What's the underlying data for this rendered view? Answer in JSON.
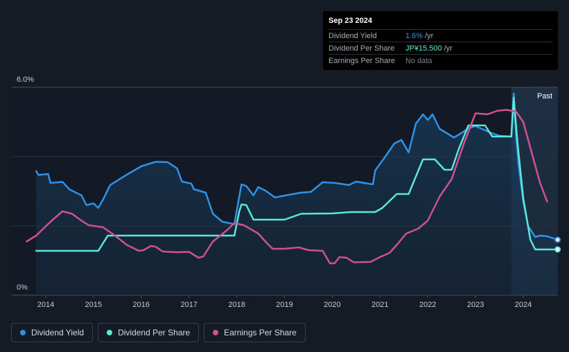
{
  "tooltip": {
    "date": "Sep 23 2024",
    "rows": [
      {
        "label": "Dividend Yield",
        "value": "1.6%",
        "unit": "/yr"
      },
      {
        "label": "Dividend Per Share",
        "value": "JP¥15.500",
        "unit": "/yr"
      },
      {
        "label": "Earnings Per Share",
        "value": "No data",
        "unit": ""
      }
    ]
  },
  "past_label": "Past",
  "legend": [
    {
      "label": "Dividend Yield",
      "color": "#2e93e8"
    },
    {
      "label": "Dividend Per Share",
      "color": "#5ce8d6"
    },
    {
      "label": "Earnings Per Share",
      "color": "#d1508f"
    }
  ],
  "chart_data": {
    "type": "line",
    "title": "",
    "xlabel": "",
    "ylabel": "",
    "ylim": [
      0,
      6.0
    ],
    "y_ticks": [
      "0%",
      "6.0%"
    ],
    "xlim": [
      2013.6,
      2024.72
    ],
    "x_ticks": [
      "2014",
      "2015",
      "2016",
      "2017",
      "2018",
      "2019",
      "2020",
      "2021",
      "2022",
      "2023",
      "2024"
    ],
    "forecast_start": 2023.75,
    "series": [
      {
        "name": "Dividend Yield",
        "color": "#2e93e8",
        "unit": "%",
        "points": [
          [
            2013.8,
            3.58
          ],
          [
            2013.85,
            3.47
          ],
          [
            2014.05,
            3.5
          ],
          [
            2014.1,
            3.24
          ],
          [
            2014.35,
            3.27
          ],
          [
            2014.5,
            3.05
          ],
          [
            2014.75,
            2.88
          ],
          [
            2014.85,
            2.6
          ],
          [
            2015.0,
            2.65
          ],
          [
            2015.1,
            2.52
          ],
          [
            2015.2,
            2.76
          ],
          [
            2015.35,
            3.18
          ],
          [
            2015.7,
            3.48
          ],
          [
            2016.0,
            3.72
          ],
          [
            2016.3,
            3.85
          ],
          [
            2016.55,
            3.84
          ],
          [
            2016.75,
            3.66
          ],
          [
            2016.85,
            3.28
          ],
          [
            2017.05,
            3.22
          ],
          [
            2017.1,
            3.06
          ],
          [
            2017.35,
            2.96
          ],
          [
            2017.5,
            2.35
          ],
          [
            2017.7,
            2.12
          ],
          [
            2017.95,
            2.05
          ],
          [
            2018.0,
            2.45
          ],
          [
            2018.1,
            3.2
          ],
          [
            2018.2,
            3.15
          ],
          [
            2018.35,
            2.88
          ],
          [
            2018.45,
            3.12
          ],
          [
            2018.6,
            3.02
          ],
          [
            2018.8,
            2.82
          ],
          [
            2019.1,
            2.9
          ],
          [
            2019.35,
            2.96
          ],
          [
            2019.55,
            2.98
          ],
          [
            2019.8,
            3.26
          ],
          [
            2020.05,
            3.24
          ],
          [
            2020.35,
            3.18
          ],
          [
            2020.5,
            3.28
          ],
          [
            2020.75,
            3.22
          ],
          [
            2020.85,
            3.2
          ],
          [
            2020.9,
            3.6
          ],
          [
            2021.1,
            3.98
          ],
          [
            2021.3,
            4.38
          ],
          [
            2021.45,
            4.48
          ],
          [
            2021.6,
            4.12
          ],
          [
            2021.75,
            4.95
          ],
          [
            2021.9,
            5.22
          ],
          [
            2022.0,
            5.06
          ],
          [
            2022.1,
            5.22
          ],
          [
            2022.25,
            4.8
          ],
          [
            2022.55,
            4.55
          ],
          [
            2022.75,
            4.72
          ],
          [
            2022.85,
            4.82
          ],
          [
            2023.0,
            4.88
          ],
          [
            2023.3,
            4.7
          ],
          [
            2023.5,
            4.6
          ],
          [
            2023.75,
            4.58
          ],
          [
            2023.8,
            5.82
          ],
          [
            2023.85,
            4.6
          ],
          [
            2023.9,
            3.8
          ],
          [
            2024.0,
            2.7
          ],
          [
            2024.1,
            2.0
          ],
          [
            2024.25,
            1.68
          ],
          [
            2024.35,
            1.72
          ],
          [
            2024.5,
            1.7
          ],
          [
            2024.72,
            1.6
          ]
        ]
      },
      {
        "name": "Dividend Per Share",
        "color": "#5ce8d6",
        "unit": "JPY",
        "points": [
          [
            2013.8,
            1.28
          ],
          [
            2015.1,
            1.28
          ],
          [
            2015.3,
            1.72
          ],
          [
            2017.95,
            1.72
          ],
          [
            2018.05,
            2.4
          ],
          [
            2018.1,
            2.62
          ],
          [
            2018.2,
            2.6
          ],
          [
            2018.35,
            2.18
          ],
          [
            2019.0,
            2.18
          ],
          [
            2019.35,
            2.35
          ],
          [
            2020.0,
            2.36
          ],
          [
            2020.4,
            2.4
          ],
          [
            2020.9,
            2.4
          ],
          [
            2021.05,
            2.52
          ],
          [
            2021.35,
            2.92
          ],
          [
            2021.6,
            2.92
          ],
          [
            2021.9,
            3.92
          ],
          [
            2022.15,
            3.92
          ],
          [
            2022.35,
            3.62
          ],
          [
            2022.5,
            3.62
          ],
          [
            2022.65,
            4.22
          ],
          [
            2022.85,
            4.9
          ],
          [
            2023.2,
            4.9
          ],
          [
            2023.35,
            4.58
          ],
          [
            2023.75,
            4.58
          ],
          [
            2023.8,
            5.7
          ],
          [
            2023.88,
            4.4
          ],
          [
            2024.0,
            2.8
          ],
          [
            2024.15,
            1.6
          ],
          [
            2024.25,
            1.32
          ],
          [
            2024.72,
            1.32
          ]
        ]
      },
      {
        "name": "Earnings Per Share",
        "color": "#d1508f",
        "unit": "JPY",
        "points": [
          [
            2013.6,
            1.55
          ],
          [
            2013.8,
            1.72
          ],
          [
            2014.1,
            2.12
          ],
          [
            2014.35,
            2.42
          ],
          [
            2014.55,
            2.35
          ],
          [
            2014.75,
            2.15
          ],
          [
            2014.9,
            2.02
          ],
          [
            2015.2,
            1.96
          ],
          [
            2015.45,
            1.72
          ],
          [
            2015.7,
            1.45
          ],
          [
            2015.95,
            1.28
          ],
          [
            2016.05,
            1.3
          ],
          [
            2016.2,
            1.42
          ],
          [
            2016.3,
            1.4
          ],
          [
            2016.45,
            1.26
          ],
          [
            2016.75,
            1.24
          ],
          [
            2017.0,
            1.25
          ],
          [
            2017.2,
            1.08
          ],
          [
            2017.3,
            1.12
          ],
          [
            2017.5,
            1.55
          ],
          [
            2017.8,
            1.88
          ],
          [
            2017.95,
            2.08
          ],
          [
            2018.15,
            2.02
          ],
          [
            2018.45,
            1.78
          ],
          [
            2018.6,
            1.55
          ],
          [
            2018.75,
            1.34
          ],
          [
            2019.0,
            1.34
          ],
          [
            2019.3,
            1.38
          ],
          [
            2019.5,
            1.3
          ],
          [
            2019.8,
            1.28
          ],
          [
            2019.95,
            0.92
          ],
          [
            2020.05,
            0.92
          ],
          [
            2020.15,
            1.1
          ],
          [
            2020.3,
            1.08
          ],
          [
            2020.45,
            0.95
          ],
          [
            2020.8,
            0.96
          ],
          [
            2021.0,
            1.1
          ],
          [
            2021.2,
            1.22
          ],
          [
            2021.35,
            1.45
          ],
          [
            2021.55,
            1.78
          ],
          [
            2021.8,
            1.92
          ],
          [
            2022.0,
            2.15
          ],
          [
            2022.25,
            2.85
          ],
          [
            2022.5,
            3.35
          ],
          [
            2022.75,
            4.35
          ],
          [
            2023.0,
            5.25
          ],
          [
            2023.25,
            5.22
          ],
          [
            2023.45,
            5.32
          ],
          [
            2023.65,
            5.35
          ],
          [
            2023.85,
            5.3
          ],
          [
            2024.0,
            5.0
          ],
          [
            2024.15,
            4.25
          ],
          [
            2024.35,
            3.25
          ],
          [
            2024.5,
            2.7
          ]
        ]
      }
    ]
  }
}
